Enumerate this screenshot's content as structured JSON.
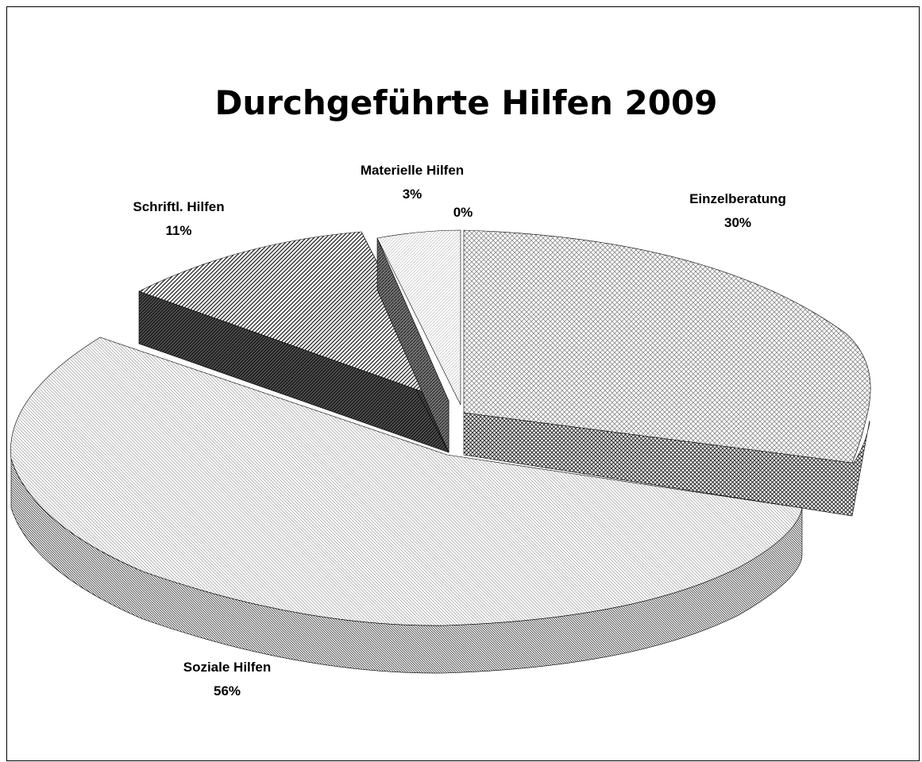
{
  "chart_data": {
    "type": "pie",
    "title": "Durchgeführte Hilfen 2009",
    "slices": [
      {
        "label": "Einzelberatung",
        "value": 30,
        "display": "30%"
      },
      {
        "label": "Soziale Hilfen",
        "value": 56,
        "display": "56%"
      },
      {
        "label": "Schriftl. Hilfen",
        "value": 11,
        "display": "11%"
      },
      {
        "label": "Materielle Hilfen",
        "value": 3,
        "display": "3%"
      },
      {
        "label": "",
        "value": 0,
        "display": "0%"
      }
    ],
    "style": "3d-exploded",
    "fill": "monochrome-hatch"
  }
}
